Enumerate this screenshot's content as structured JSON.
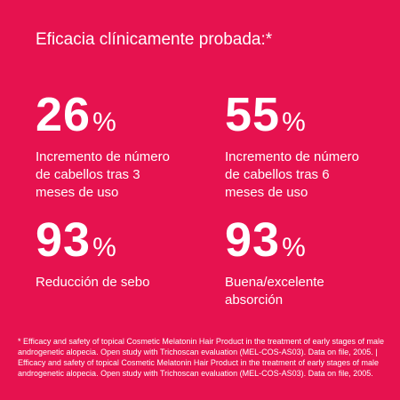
{
  "title": "Eficacia clínicamente probada:*",
  "stats": [
    {
      "value": 26,
      "unit": "%",
      "label": "Incremento de número de cabellos tras 3 meses de uso"
    },
    {
      "value": 55,
      "unit": "%",
      "label": "Incremento de número de cabellos tras 6 meses de uso"
    },
    {
      "value": 93,
      "unit": "%",
      "label": "Reducción de sebo"
    },
    {
      "value": 93,
      "unit": "%",
      "label": "Buena/excelente absorción"
    }
  ],
  "footnote": "* Efficacy and safety of topical Cosmetic Melatonin Hair Product in the treatment of early stages of male androgenetic alopecia. Open study with Trichoscan evaluation (MEL-COS-AS03). Data on file, 2005. | Efficacy and safety of topical Cosmetic Melatonin Hair Product in the treatment of early stages of male androgenetic alopecia. Open study with Trichoscan evaluation (MEL-COS-AS03). Data on file, 2005."
}
